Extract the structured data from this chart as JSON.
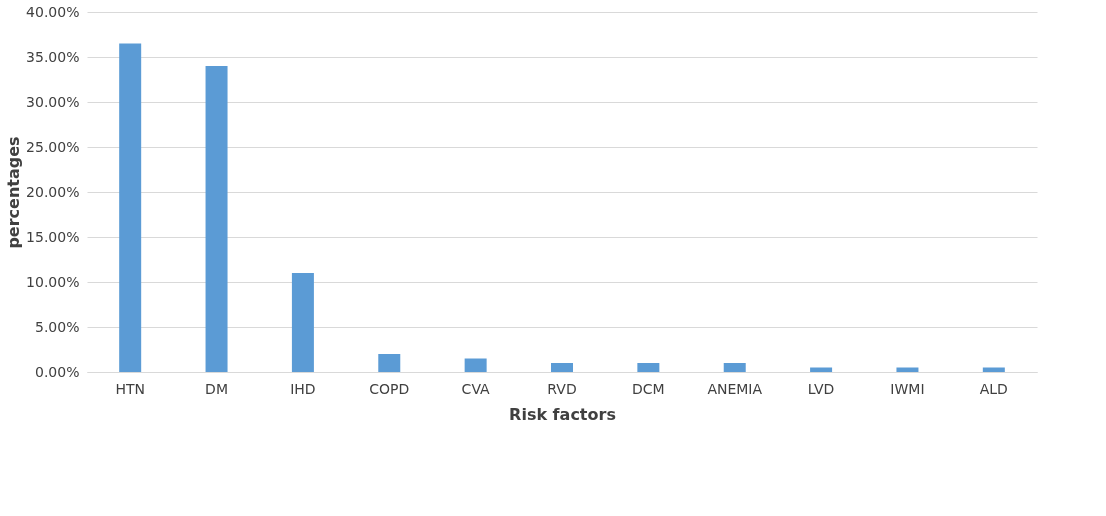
{
  "chart_data": {
    "type": "bar",
    "xlabel": "Risk factors",
    "ylabel": "percentages",
    "categories": [
      "HTN",
      "DM",
      "IHD",
      "COPD",
      "CVA",
      "RVD",
      "DCM",
      "ANEMIA",
      "LVD",
      "IWMI",
      "ALD"
    ],
    "values": [
      36.5,
      34.0,
      11.0,
      2.0,
      1.5,
      1.0,
      1.0,
      1.0,
      0.5,
      0.5,
      0.5
    ],
    "color": "#5b9bd5",
    "ylim": [
      0,
      40
    ],
    "yticks": [
      {
        "value": 0,
        "label": "0.00%"
      },
      {
        "value": 5,
        "label": "5.00%"
      },
      {
        "value": 10,
        "label": "10.00%"
      },
      {
        "value": 15,
        "label": "15.00%"
      },
      {
        "value": 20,
        "label": "20.00%"
      },
      {
        "value": 25,
        "label": "25.00%"
      },
      {
        "value": 30,
        "label": "30.00%"
      },
      {
        "value": 35,
        "label": "35.00%"
      },
      {
        "value": 40,
        "label": "40.00%"
      }
    ],
    "grid": "y"
  }
}
